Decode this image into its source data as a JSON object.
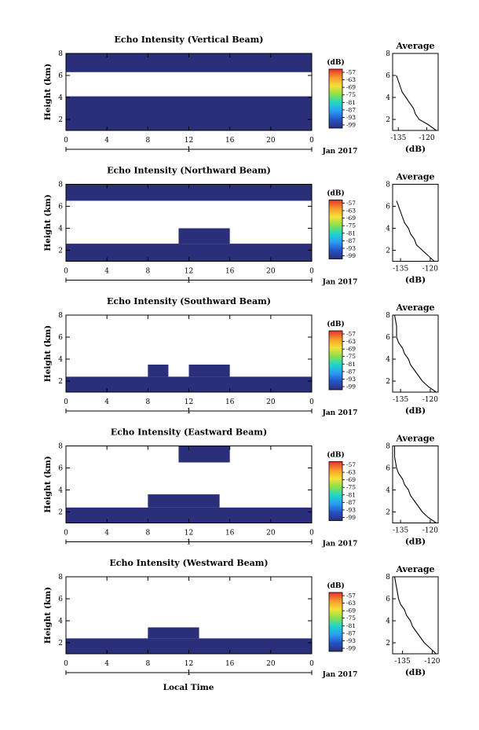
{
  "figure": {
    "date_label": "Jan 2017",
    "xlabel": "Local Time",
    "colormap_stops": [
      "#2b2f7a",
      "#2453c7",
      "#2a9df4",
      "#1fd6c8",
      "#8be04a",
      "#f6e13a",
      "#f89a2c",
      "#e8302a"
    ]
  },
  "chart_data": [
    {
      "type": "heatmap",
      "title": "Echo Intensity (Vertical Beam)",
      "ylabel": "Height (km)",
      "x_ticks": [
        "0",
        "4",
        "8",
        "12",
        "16",
        "20",
        "0"
      ],
      "x_day_label": "1",
      "y_ticks": [
        "2",
        "4",
        "6",
        "8"
      ],
      "xlim": [
        0,
        24
      ],
      "ylim": [
        1,
        8
      ],
      "colorbar": {
        "unit": "(dB)",
        "ticks": [
          "-57",
          "-63",
          "-69",
          "-75",
          "-81",
          "-87",
          "-93",
          "-99"
        ]
      },
      "regions": [
        {
          "x": [
            0,
            24
          ],
          "y": [
            1,
            4.1
          ],
          "value": -99
        },
        {
          "x": [
            0,
            24
          ],
          "y": [
            6.3,
            8
          ],
          "value": -99
        }
      ],
      "average_profile": {
        "title": "Average",
        "xlabel": "(dB)",
        "x_ticks": [
          "-135",
          "-120"
        ],
        "y_ticks": [
          "2",
          "4",
          "6",
          "8"
        ],
        "xlim": [
          -138,
          -114
        ],
        "ylim": [
          1,
          8
        ],
        "height_km": [
          1.0,
          1.5,
          2.0,
          2.5,
          3.0,
          3.5,
          4.0,
          4.5,
          5.0,
          5.5,
          6.0
        ],
        "db": [
          -115,
          -119,
          -124,
          -126,
          -127,
          -129,
          -131,
          -133,
          -134,
          -135,
          -136
        ]
      }
    },
    {
      "type": "heatmap",
      "title": "Echo Intensity (Northward Beam)",
      "ylabel": "Height (km)",
      "x_ticks": [
        "0",
        "4",
        "8",
        "12",
        "16",
        "20",
        "0"
      ],
      "x_day_label": "1",
      "y_ticks": [
        "2",
        "4",
        "6",
        "8"
      ],
      "xlim": [
        0,
        24
      ],
      "ylim": [
        1,
        8
      ],
      "colorbar": {
        "unit": "(dB)",
        "ticks": [
          "-57",
          "-63",
          "-69",
          "-75",
          "-81",
          "-87",
          "-93",
          "-99"
        ]
      },
      "regions": [
        {
          "x": [
            0,
            24
          ],
          "y": [
            1,
            2.6
          ],
          "value": -99
        },
        {
          "x": [
            11,
            16
          ],
          "y": [
            2.6,
            4.0
          ],
          "value": -99
        },
        {
          "x": [
            0,
            24
          ],
          "y": [
            6.5,
            8
          ],
          "value": -99
        }
      ],
      "average_profile": {
        "title": "Average",
        "xlabel": "(dB)",
        "x_ticks": [
          "-135",
          "-120"
        ],
        "y_ticks": [
          "2",
          "4",
          "6",
          "8"
        ],
        "xlim": [
          -139,
          -116
        ],
        "ylim": [
          1,
          8
        ],
        "height_km": [
          1.0,
          1.5,
          2.0,
          2.5,
          3.0,
          3.5,
          4.0,
          4.5,
          5.0,
          5.5,
          6.0,
          6.5
        ],
        "db": [
          -118,
          -121,
          -124,
          -127,
          -128,
          -130,
          -131,
          -133,
          -134,
          -135,
          -136,
          -137
        ]
      }
    },
    {
      "type": "heatmap",
      "title": "Echo Intensity (Southward Beam)",
      "ylabel": "Height (km)",
      "x_ticks": [
        "0",
        "4",
        "8",
        "12",
        "16",
        "20",
        "0"
      ],
      "x_day_label": "1",
      "y_ticks": [
        "2",
        "4",
        "6",
        "8"
      ],
      "xlim": [
        0,
        24
      ],
      "ylim": [
        1,
        8
      ],
      "colorbar": {
        "unit": "(dB)",
        "ticks": [
          "-57",
          "-63",
          "-69",
          "-75",
          "-81",
          "-87",
          "-93",
          "-99"
        ]
      },
      "regions": [
        {
          "x": [
            0,
            24
          ],
          "y": [
            1,
            2.4
          ],
          "value": -99
        },
        {
          "x": [
            8,
            10
          ],
          "y": [
            2.4,
            3.5
          ],
          "value": -99
        },
        {
          "x": [
            12,
            16
          ],
          "y": [
            2.4,
            3.5
          ],
          "value": -99
        }
      ],
      "average_profile": {
        "title": "Average",
        "xlabel": "(dB)",
        "x_ticks": [
          "-135",
          "-120"
        ],
        "y_ticks": [
          "2",
          "4",
          "6",
          "8"
        ],
        "xlim": [
          -139,
          -116
        ],
        "ylim": [
          1,
          8
        ],
        "height_km": [
          1.0,
          1.5,
          2.0,
          2.5,
          3.0,
          3.5,
          4.0,
          4.5,
          5.0,
          5.5,
          6.0,
          7.0,
          8.0
        ],
        "db": [
          -117,
          -121,
          -124,
          -126,
          -128,
          -130,
          -131,
          -133,
          -134,
          -136,
          -137,
          -137,
          -138
        ]
      }
    },
    {
      "type": "heatmap",
      "title": "Echo Intensity (Eastward Beam)",
      "ylabel": "Height (km)",
      "x_ticks": [
        "0",
        "4",
        "8",
        "12",
        "16",
        "20",
        "0"
      ],
      "x_day_label": "1",
      "y_ticks": [
        "2",
        "4",
        "6",
        "8"
      ],
      "xlim": [
        0,
        24
      ],
      "ylim": [
        1,
        8
      ],
      "colorbar": {
        "unit": "(dB)",
        "ticks": [
          "-57",
          "-63",
          "-69",
          "-75",
          "-81",
          "-87",
          "-93",
          "-99"
        ]
      },
      "regions": [
        {
          "x": [
            0,
            24
          ],
          "y": [
            1,
            2.4
          ],
          "value": -99
        },
        {
          "x": [
            8,
            15
          ],
          "y": [
            2.4,
            3.6
          ],
          "value": -99
        },
        {
          "x": [
            11,
            16
          ],
          "y": [
            6.5,
            8
          ],
          "value": -99
        }
      ],
      "average_profile": {
        "title": "Average",
        "xlabel": "(dB)",
        "x_ticks": [
          "-135",
          "-120"
        ],
        "y_ticks": [
          "2",
          "4",
          "6",
          "8"
        ],
        "xlim": [
          -139,
          -116
        ],
        "ylim": [
          1,
          8
        ],
        "height_km": [
          1.0,
          1.5,
          2.0,
          2.5,
          3.0,
          3.5,
          4.0,
          4.5,
          5.0,
          5.5,
          6.0,
          7.0,
          8.0
        ],
        "db": [
          -117,
          -121,
          -124,
          -126,
          -128,
          -130,
          -131,
          -133,
          -134,
          -136,
          -137,
          -138,
          -138
        ]
      }
    },
    {
      "type": "heatmap",
      "title": "Echo Intensity (Westward Beam)",
      "ylabel": "Height (km)",
      "x_ticks": [
        "0",
        "4",
        "8",
        "12",
        "16",
        "20",
        "0"
      ],
      "x_day_label": "1",
      "y_ticks": [
        "2",
        "4",
        "6",
        "8"
      ],
      "xlim": [
        0,
        24
      ],
      "ylim": [
        1,
        8
      ],
      "colorbar": {
        "unit": "(dB)",
        "ticks": [
          "-57",
          "-63",
          "-69",
          "-75",
          "-81",
          "-87",
          "-93",
          "-99"
        ]
      },
      "regions": [
        {
          "x": [
            0,
            24
          ],
          "y": [
            1,
            2.4
          ],
          "value": -99
        },
        {
          "x": [
            8,
            13
          ],
          "y": [
            2.4,
            3.4
          ],
          "value": -99
        }
      ],
      "average_profile": {
        "title": "Average",
        "xlabel": "(dB)",
        "x_ticks": [
          "-135",
          "-120"
        ],
        "y_ticks": [
          "2",
          "4",
          "6",
          "8"
        ],
        "xlim": [
          -140,
          -117
        ],
        "ylim": [
          1,
          8
        ],
        "height_km": [
          1.0,
          1.5,
          2.0,
          2.5,
          3.0,
          3.5,
          4.0,
          4.5,
          5.0,
          5.5,
          6.0,
          7.0,
          8.0
        ],
        "db": [
          -118,
          -121,
          -124,
          -126,
          -128,
          -130,
          -131,
          -133,
          -134,
          -136,
          -137,
          -138,
          -139
        ]
      }
    }
  ]
}
